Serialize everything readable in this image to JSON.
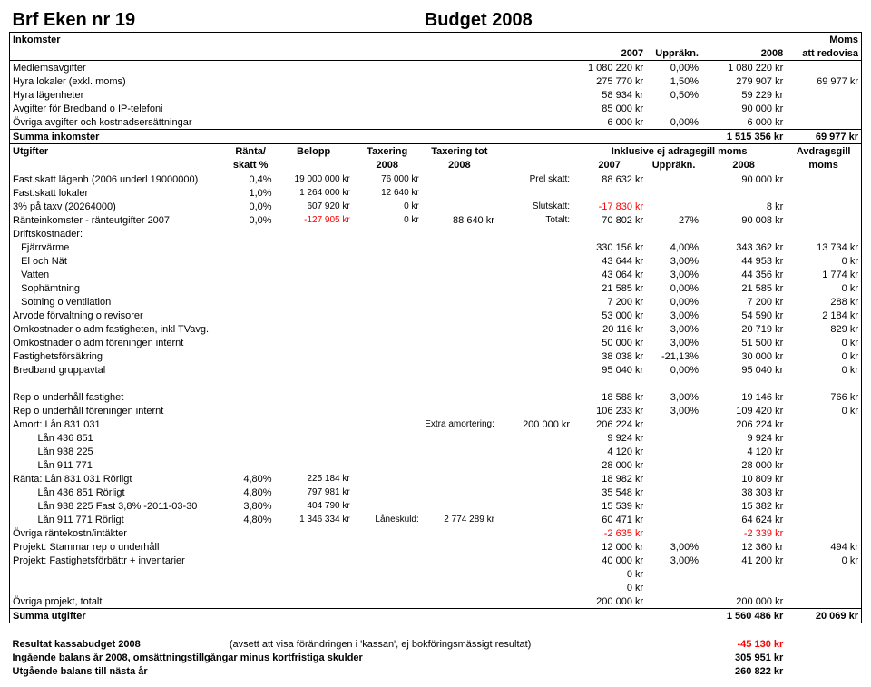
{
  "title_left": "Brf Eken nr 19",
  "title_right": "Budget 2008",
  "inkomster_hdr": "Inkomster",
  "moms_hdr": "Moms",
  "col_2007": "2007",
  "col_upprakn": "Uppräkn.",
  "col_2008": "2008",
  "col_att_red": "att redovisa",
  "rows_ink": [
    {
      "label": "Medlemsavgifter",
      "v07": "1 080 220 kr",
      "up": "0,00%",
      "v08": "1 080 220 kr",
      "moms": ""
    },
    {
      "label": "Hyra lokaler (exkl. moms)",
      "v07": "275 770 kr",
      "up": "1,50%",
      "v08": "279 907 kr",
      "moms": "69 977 kr"
    },
    {
      "label": "Hyra lägenheter",
      "v07": "58 934 kr",
      "up": "0,50%",
      "v08": "59 229 kr",
      "moms": ""
    },
    {
      "label": "Avgifter för Bredband o IP-telefoni",
      "v07": "85 000 kr",
      "up": "",
      "v08": "90 000 kr",
      "moms": ""
    },
    {
      "label": "Övriga avgifter och kostnadsersättningar",
      "v07": "6 000 kr",
      "up": "0,00%",
      "v08": "6 000 kr",
      "moms": ""
    }
  ],
  "summa_ink": {
    "label": "Summa inkomster",
    "v08": "1 515 356 kr",
    "moms": "69 977 kr"
  },
  "utgifter_hdr": "Utgifter",
  "hdr_ranta": "Ränta/",
  "hdr_skatt": "skatt %",
  "hdr_belopp": "Belopp",
  "hdr_tax": "Taxering",
  "hdr_tax_tot": "Taxering tot",
  "hdr_2008a": "2008",
  "hdr_2008b": "2008",
  "hdr_inkl": "Inklusive ej adragsgill moms",
  "hdr_avdr": "Avdragsgill",
  "hdr_moms2": "moms",
  "hdr_2007": "2007",
  "hdr_upprakn2": "Uppräkn.",
  "hdr_2008c": "2008",
  "rows_top": [
    {
      "label": "Fast.skatt lägenh (2006 underl 19000000)",
      "pct": "0,4%",
      "bel": "19 000 000 kr",
      "tax": "76 000 kr",
      "tot": "",
      "note": "Prel skatt:",
      "v07": "88 632 kr",
      "up": "",
      "v08": "90 000 kr",
      "avdr": ""
    },
    {
      "label": "Fast.skatt lokaler",
      "pct": "1,0%",
      "bel": "1 264 000 kr",
      "tax": "12 640 kr",
      "tot": "",
      "note": "",
      "v07": "",
      "up": "",
      "v08": "",
      "avdr": ""
    },
    {
      "label": "3% på taxv (20264000)",
      "pct": "0,0%",
      "bel": "607 920 kr",
      "tax": "0 kr",
      "tot": "",
      "note": "Slutskatt:",
      "v07": "-17 830 kr",
      "up": "",
      "v08": "8 kr",
      "avdr": "",
      "v07red": true
    },
    {
      "label": "Ränteinkomster - ränteutgifter 2007",
      "pct": "0,0%",
      "bel": "-127 905 kr",
      "tax": "0 kr",
      "tot": "88 640 kr",
      "note": "Totalt:",
      "v07": "70 802 kr",
      "up": "27%",
      "v08": "90 008 kr",
      "avdr": "",
      "belred": true
    }
  ],
  "driftskostnader": "Driftskostnader:",
  "rows_drift": [
    {
      "ind": true,
      "label": "Fjärrvärme",
      "v07": "330 156 kr",
      "up": "4,00%",
      "v08": "343 362 kr",
      "avdr": "13 734 kr"
    },
    {
      "ind": true,
      "label": "El och Nät",
      "v07": "43 644 kr",
      "up": "3,00%",
      "v08": "44 953 kr",
      "avdr": "0 kr"
    },
    {
      "ind": true,
      "label": "Vatten",
      "v07": "43 064 kr",
      "up": "3,00%",
      "v08": "44 356 kr",
      "avdr": "1 774 kr"
    },
    {
      "ind": true,
      "label": "Sophämtning",
      "v07": "21 585 kr",
      "up": "0,00%",
      "v08": "21 585 kr",
      "avdr": "0 kr"
    },
    {
      "ind": true,
      "label": "Sotning o ventilation",
      "v07": "7 200 kr",
      "up": "0,00%",
      "v08": "7 200 kr",
      "avdr": "288 kr"
    },
    {
      "ind": false,
      "label": "Arvode förvaltning o revisorer",
      "v07": "53 000 kr",
      "up": "3,00%",
      "v08": "54 590 kr",
      "avdr": "2 184 kr"
    },
    {
      "ind": false,
      "label": "Omkostnader o adm fastigheten, inkl TVavg.",
      "v07": "20 116 kr",
      "up": "3,00%",
      "v08": "20 719 kr",
      "avdr": "829 kr"
    },
    {
      "ind": false,
      "label": "Omkostnader o adm föreningen internt",
      "v07": "50 000 kr",
      "up": "3,00%",
      "v08": "51 500 kr",
      "avdr": "0 kr"
    },
    {
      "ind": false,
      "label": "Fastighetsförsäkring",
      "v07": "38 038 kr",
      "up": "-21,13%",
      "v08": "30 000 kr",
      "avdr": "0 kr"
    },
    {
      "ind": false,
      "label": "Bredband gruppavtal",
      "v07": "95 040 kr",
      "up": "0,00%",
      "v08": "95 040 kr",
      "avdr": "0 kr"
    }
  ],
  "rows_rep": [
    {
      "label": "Rep o underhåll fastighet",
      "v07": "18 588 kr",
      "up": "3,00%",
      "v08": "19 146 kr",
      "avdr": "766 kr"
    },
    {
      "label": "Rep o underhåll föreningen internt",
      "v07": "106 233 kr",
      "up": "3,00%",
      "v08": "109 420 kr",
      "avdr": "0 kr"
    }
  ],
  "rows_amort": [
    {
      "label": "Amort: Lån 831 031",
      "note": "Extra amortering:",
      "noteval": "200 000 kr",
      "v07": "206 224 kr",
      "up": "",
      "v08": "206 224 kr",
      "avdr": ""
    },
    {
      "ind": true,
      "label": "Lån 436 851",
      "v07": "9 924 kr",
      "up": "",
      "v08": "9 924 kr",
      "avdr": ""
    },
    {
      "ind": true,
      "label": "Lån 938 225",
      "v07": "4 120 kr",
      "up": "",
      "v08": "4 120 kr",
      "avdr": ""
    },
    {
      "ind": true,
      "label": "Lån 911 771",
      "v07": "28 000 kr",
      "up": "",
      "v08": "28 000 kr",
      "avdr": ""
    }
  ],
  "rows_ranta": [
    {
      "label": "Ränta: Lån 831 031  Rörligt",
      "pct": "4,80%",
      "bel": "225 184 kr",
      "v07": "18 982 kr",
      "v08": "10 809 kr"
    },
    {
      "ind": true,
      "label": "Lån 436 851  Rörligt",
      "pct": "4,80%",
      "bel": "797 981 kr",
      "v07": "35 548 kr",
      "v08": "38 303 kr"
    },
    {
      "ind": true,
      "label": "Lån 938 225  Fast 3,8% -2011-03-30",
      "pct": "3,80%",
      "bel": "404 790 kr",
      "v07": "15 539 kr",
      "v08": "15 382 kr"
    },
    {
      "ind": true,
      "label": "Lån 911 771  Rörligt",
      "pct": "4,80%",
      "bel": "1 346 334 kr",
      "note": "Låneskuld:",
      "noteval": "2 774 289 kr",
      "v07": "60 471 kr",
      "v08": "64 624 kr"
    }
  ],
  "ovriga_rante": {
    "label": "Övriga räntekostn/intäkter",
    "v07": "-2 635 kr",
    "v08": "-2 339 kr"
  },
  "rows_proj": [
    {
      "label": "Projekt: Stammar rep o underhåll",
      "v07": "12 000 kr",
      "up": "3,00%",
      "v08": "12 360 kr",
      "avdr": "494 kr"
    },
    {
      "label": "Projekt: Fastighetsförbättr + inventarier",
      "v07": "40 000 kr",
      "up": "3,00%",
      "v08": "41 200 kr",
      "avdr": "0 kr"
    },
    {
      "label": "",
      "v07": "0 kr",
      "up": "",
      "v08": "",
      "avdr": ""
    },
    {
      "label": "",
      "v07": "0 kr",
      "up": "",
      "v08": "",
      "avdr": ""
    }
  ],
  "ovriga_proj": {
    "label": "Övriga projekt, totalt",
    "v07": "200 000 kr",
    "v08": "200 000 kr"
  },
  "summa_utg": {
    "label": "Summa utgifter",
    "v08": "1 560 486 kr",
    "avdr": "20 069 kr"
  },
  "result": {
    "l1a": "Resultat kassabudget 2008",
    "l1b": "(avsett att visa förändringen i 'kassan', ej bokföringsmässigt resultat)",
    "l1v": "-45 130 kr",
    "l2": "Ingående balans år 2008, omsättningstillgångar minus kortfristiga skulder",
    "l2v": "305 951 kr",
    "l3": "Utgående balans till nästa år",
    "l3v": "260 822 kr"
  }
}
